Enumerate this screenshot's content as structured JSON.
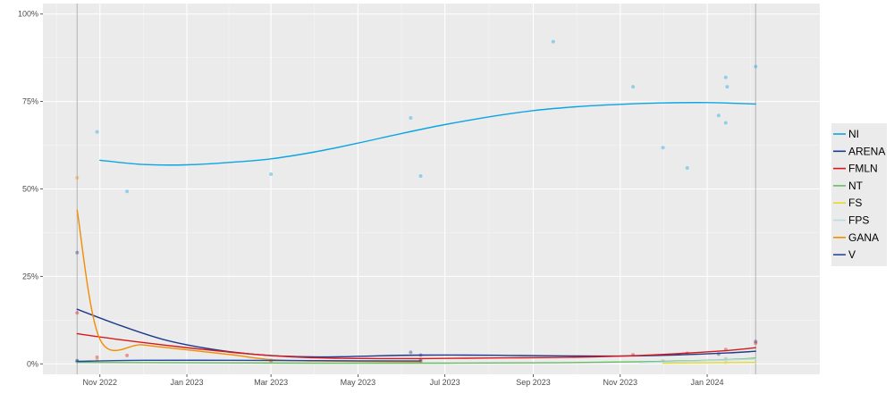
{
  "chart_data": {
    "type": "line",
    "title": "",
    "xlabel": "",
    "ylabel": "",
    "x_axis": {
      "type": "date",
      "range": [
        "2022-09-22",
        "2024-03-20"
      ],
      "ticks": [
        {
          "date": "2022-11-01",
          "label": "Nov 2022"
        },
        {
          "date": "2023-01-01",
          "label": "Jan 2023"
        },
        {
          "date": "2023-03-01",
          "label": "Mar 2023"
        },
        {
          "date": "2023-05-01",
          "label": "May 2023"
        },
        {
          "date": "2023-07-01",
          "label": "Jul 2023"
        },
        {
          "date": "2023-09-01",
          "label": "Sep 2023"
        },
        {
          "date": "2023-11-01",
          "label": "Nov 2023"
        },
        {
          "date": "2024-01-01",
          "label": "Jan 2024"
        }
      ],
      "reference_lines": [
        "2022-10-16",
        "2024-02-04"
      ]
    },
    "y_axis": {
      "range": [
        -3,
        103
      ],
      "ticks": [
        {
          "value": 0,
          "label": "0%"
        },
        {
          "value": 25,
          "label": "25%"
        },
        {
          "value": 50,
          "label": "50%"
        },
        {
          "value": 75,
          "label": "75%"
        },
        {
          "value": 100,
          "label": "100%"
        }
      ]
    },
    "grid": true,
    "legend_position": "right",
    "series": [
      {
        "name": "NI",
        "color": "#0BA5E3",
        "line": [
          {
            "x": "2022-11-01",
            "y": 58.2
          },
          {
            "x": "2022-12-01",
            "y": 57.0
          },
          {
            "x": "2023-01-01",
            "y": 56.9
          },
          {
            "x": "2023-02-01",
            "y": 57.6
          },
          {
            "x": "2023-03-01",
            "y": 58.6
          },
          {
            "x": "2023-04-01",
            "y": 60.6
          },
          {
            "x": "2023-05-01",
            "y": 63.1
          },
          {
            "x": "2023-06-01",
            "y": 65.9
          },
          {
            "x": "2023-07-01",
            "y": 68.4
          },
          {
            "x": "2023-08-01",
            "y": 70.6
          },
          {
            "x": "2023-09-01",
            "y": 72.4
          },
          {
            "x": "2023-10-01",
            "y": 73.5
          },
          {
            "x": "2023-11-01",
            "y": 74.2
          },
          {
            "x": "2023-12-01",
            "y": 74.6
          },
          {
            "x": "2024-01-01",
            "y": 74.7
          },
          {
            "x": "2024-02-04",
            "y": 74.3
          }
        ],
        "points": [
          {
            "x": "2022-10-30",
            "y": 66.3
          },
          {
            "x": "2022-11-20",
            "y": 49.3
          },
          {
            "x": "2023-03-01",
            "y": 54.2
          },
          {
            "x": "2023-06-07",
            "y": 70.3
          },
          {
            "x": "2023-06-14",
            "y": 53.7
          },
          {
            "x": "2023-09-15",
            "y": 92.1
          },
          {
            "x": "2023-11-10",
            "y": 79.2
          },
          {
            "x": "2023-12-01",
            "y": 61.8
          },
          {
            "x": "2023-12-18",
            "y": 56.0
          },
          {
            "x": "2024-01-09",
            "y": 71.0
          },
          {
            "x": "2024-01-14",
            "y": 68.9
          },
          {
            "x": "2024-01-14",
            "y": 81.9
          },
          {
            "x": "2024-01-15",
            "y": 79.2
          },
          {
            "x": "2024-02-04",
            "y": 85.0
          }
        ]
      },
      {
        "name": "ARENA",
        "color": "#1E3A8C",
        "line": [
          {
            "x": "2022-10-16",
            "y": 15.6
          },
          {
            "x": "2022-11-15",
            "y": 11.0
          },
          {
            "x": "2022-12-15",
            "y": 7.0
          },
          {
            "x": "2023-01-15",
            "y": 4.4
          },
          {
            "x": "2023-02-15",
            "y": 2.8
          },
          {
            "x": "2023-03-15",
            "y": 2.1
          },
          {
            "x": "2023-04-15",
            "y": 2.0
          },
          {
            "x": "2023-05-15",
            "y": 2.3
          },
          {
            "x": "2023-06-15",
            "y": 2.5
          },
          {
            "x": "2023-07-15",
            "y": 2.5
          },
          {
            "x": "2023-08-15",
            "y": 2.4
          },
          {
            "x": "2023-09-15",
            "y": 2.3
          },
          {
            "x": "2023-10-15",
            "y": 2.2
          },
          {
            "x": "2023-11-15",
            "y": 2.3
          },
          {
            "x": "2023-12-15",
            "y": 2.6
          },
          {
            "x": "2024-01-15",
            "y": 3.1
          },
          {
            "x": "2024-02-04",
            "y": 3.6
          }
        ],
        "points": [
          {
            "x": "2022-10-16",
            "y": 31.8
          },
          {
            "x": "2022-10-16",
            "y": 0.9
          },
          {
            "x": "2023-06-07",
            "y": 3.3
          },
          {
            "x": "2023-06-14",
            "y": 2.5
          },
          {
            "x": "2024-01-09",
            "y": 2.8
          },
          {
            "x": "2024-02-04",
            "y": 6.4
          }
        ]
      },
      {
        "name": "FMLN",
        "color": "#D7191C",
        "line": [
          {
            "x": "2022-10-16",
            "y": 8.6
          },
          {
            "x": "2022-11-15",
            "y": 6.9
          },
          {
            "x": "2022-12-15",
            "y": 5.4
          },
          {
            "x": "2023-01-15",
            "y": 4.0
          },
          {
            "x": "2023-02-15",
            "y": 2.8
          },
          {
            "x": "2023-03-15",
            "y": 2.0
          },
          {
            "x": "2023-04-15",
            "y": 1.6
          },
          {
            "x": "2023-05-15",
            "y": 1.5
          },
          {
            "x": "2023-06-15",
            "y": 1.5
          },
          {
            "x": "2023-07-15",
            "y": 1.6
          },
          {
            "x": "2023-08-15",
            "y": 1.7
          },
          {
            "x": "2023-09-15",
            "y": 1.8
          },
          {
            "x": "2023-10-15",
            "y": 2.0
          },
          {
            "x": "2023-11-15",
            "y": 2.4
          },
          {
            "x": "2023-12-15",
            "y": 3.0
          },
          {
            "x": "2024-01-15",
            "y": 3.8
          },
          {
            "x": "2024-02-04",
            "y": 4.6
          }
        ],
        "points": [
          {
            "x": "2022-10-16",
            "y": 14.6
          },
          {
            "x": "2022-10-30",
            "y": 1.9
          },
          {
            "x": "2022-11-20",
            "y": 2.4
          },
          {
            "x": "2023-03-01",
            "y": 1.0
          },
          {
            "x": "2023-06-14",
            "y": 1.2
          },
          {
            "x": "2023-11-10",
            "y": 2.6
          },
          {
            "x": "2023-12-18",
            "y": 3.0
          },
          {
            "x": "2024-01-14",
            "y": 4.1
          },
          {
            "x": "2024-02-04",
            "y": 5.9
          }
        ]
      },
      {
        "name": "NT",
        "color": "#66BD63",
        "line": [
          {
            "x": "2022-10-16",
            "y": 0.4
          },
          {
            "x": "2023-01-01",
            "y": 0.3
          },
          {
            "x": "2023-04-01",
            "y": 0.2
          },
          {
            "x": "2023-07-01",
            "y": 0.2
          },
          {
            "x": "2023-09-15",
            "y": 0.3
          },
          {
            "x": "2023-11-15",
            "y": 0.6
          },
          {
            "x": "2024-01-01",
            "y": 1.0
          },
          {
            "x": "2024-02-04",
            "y": 1.6
          }
        ],
        "points": [
          {
            "x": "2023-12-01",
            "y": 0.8
          },
          {
            "x": "2024-01-14",
            "y": 1.4
          }
        ]
      },
      {
        "name": "FS",
        "color": "#E6D92A",
        "line": [
          {
            "x": "2023-12-01",
            "y": 0.2
          },
          {
            "x": "2024-02-04",
            "y": 0.4
          }
        ],
        "points": [
          {
            "x": "2024-01-14",
            "y": 0.4
          }
        ]
      },
      {
        "name": "FPS",
        "color": "#B8DCE6",
        "line": [
          {
            "x": "2023-11-15",
            "y": 0.3
          },
          {
            "x": "2024-01-01",
            "y": 0.9
          },
          {
            "x": "2024-02-04",
            "y": 1.4
          }
        ],
        "points": [
          {
            "x": "2024-01-14",
            "y": 1.0
          }
        ]
      },
      {
        "name": "GANA",
        "color": "#F28C00",
        "line": [
          {
            "x": "2022-10-16",
            "y": 43.9
          },
          {
            "x": "2022-11-01",
            "y": 7.0
          },
          {
            "x": "2022-12-01",
            "y": 5.4
          },
          {
            "x": "2023-01-01",
            "y": 4.0
          },
          {
            "x": "2023-02-01",
            "y": 2.6
          },
          {
            "x": "2023-03-01",
            "y": 1.2
          },
          {
            "x": "2023-04-01",
            "y": 0.8
          },
          {
            "x": "2023-06-14",
            "y": 0.6
          }
        ],
        "points": [
          {
            "x": "2022-10-16",
            "y": 53.2
          },
          {
            "x": "2022-10-30",
            "y": 1.1
          },
          {
            "x": "2023-03-01",
            "y": 0.5
          },
          {
            "x": "2023-06-14",
            "y": 0.6
          }
        ]
      },
      {
        "name": "V",
        "color": "#2748A0",
        "line": [
          {
            "x": "2022-10-16",
            "y": 0.7
          },
          {
            "x": "2022-12-01",
            "y": 1.0
          },
          {
            "x": "2023-02-01",
            "y": 1.0
          },
          {
            "x": "2023-04-01",
            "y": 0.9
          },
          {
            "x": "2023-06-14",
            "y": 0.8
          }
        ],
        "points": [
          {
            "x": "2022-10-16",
            "y": 0.7
          },
          {
            "x": "2023-06-14",
            "y": 0.8
          }
        ]
      }
    ]
  }
}
